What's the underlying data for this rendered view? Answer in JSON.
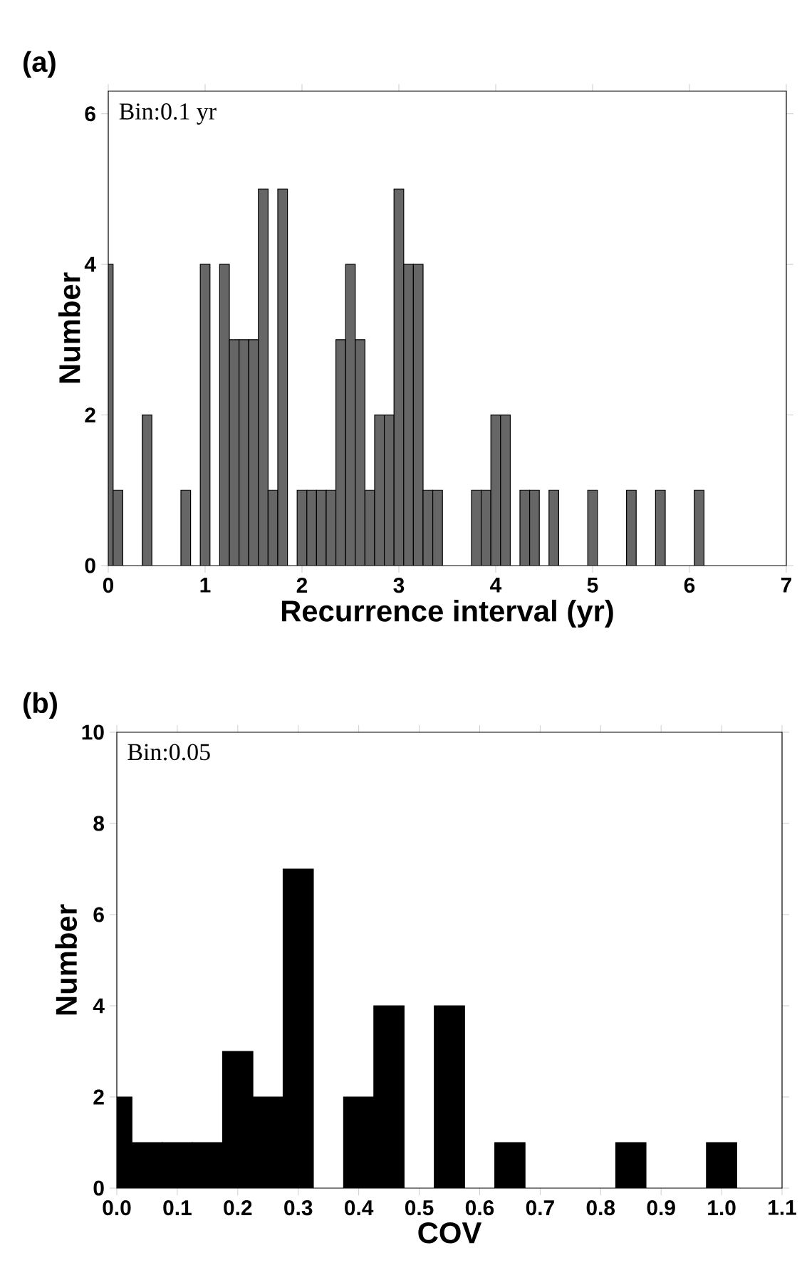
{
  "chart_data": [
    {
      "type": "histogram",
      "title": "(a)",
      "xlabel": "Recurrence interval (yr)",
      "ylabel": "Number",
      "annotations": [
        "Bin:0.1 yr"
      ],
      "color": "#666666",
      "bins": [
        0,
        0.05,
        0.15,
        0.35,
        0.45,
        0.75,
        0.85,
        0.95,
        1.05,
        1.15,
        1.25,
        1.35,
        1.45,
        1.55,
        1.65,
        1.75,
        1.85,
        1.95,
        2.05,
        2.15,
        2.25,
        2.35,
        2.45,
        2.55,
        2.65,
        2.75,
        2.85,
        2.95,
        3.05,
        3.15,
        3.25,
        3.35,
        3.45,
        3.75,
        3.85,
        3.95,
        4.05,
        4.15,
        4.25,
        4.35,
        4.45,
        4.55,
        4.65,
        4.95,
        5.05,
        5.35,
        5.45,
        5.65,
        5.75,
        6.05,
        6.15
      ],
      "values": [
        4,
        1,
        0,
        2,
        0,
        1,
        0,
        4,
        0,
        4,
        3,
        3,
        3,
        5,
        1,
        5,
        0,
        1,
        1,
        1,
        1,
        3,
        4,
        3,
        1,
        2,
        2,
        5,
        4,
        4,
        1,
        1,
        0,
        1,
        1,
        2,
        2,
        0,
        1,
        1,
        0,
        1,
        0,
        1,
        0,
        1,
        0,
        1,
        0,
        1
      ],
      "xlim": [
        0,
        7
      ],
      "xticks": [
        0,
        1,
        2,
        3,
        4,
        5,
        6,
        7
      ],
      "ylim": [
        0,
        6.3
      ],
      "yticks": [
        0,
        2,
        4,
        6
      ]
    },
    {
      "type": "histogram",
      "title": "(b)",
      "xlabel": "COV",
      "ylabel": "Number",
      "annotations": [
        "Bin:0.05"
      ],
      "color": "#000000",
      "bins": [
        0,
        0.025,
        0.075,
        0.125,
        0.175,
        0.225,
        0.275,
        0.325,
        0.375,
        0.425,
        0.475,
        0.525,
        0.575,
        0.625,
        0.675,
        0.825,
        0.875,
        0.975,
        1.025
      ],
      "values": [
        2,
        1,
        1,
        1,
        3,
        2,
        7,
        0,
        2,
        4,
        0,
        4,
        0,
        1,
        0,
        1,
        0,
        1
      ],
      "xlim": [
        0,
        1.1
      ],
      "xticks": [
        {
          "value": 0,
          "label": "0.0"
        },
        0.1,
        0.2,
        0.3,
        0.4,
        0.5,
        0.6,
        0.7,
        0.8,
        0.9,
        {
          "value": 1,
          "label": "1.0"
        },
        1.1
      ],
      "ylim": [
        0,
        10
      ],
      "yticks": [
        0,
        2,
        4,
        6,
        8,
        10
      ]
    }
  ]
}
